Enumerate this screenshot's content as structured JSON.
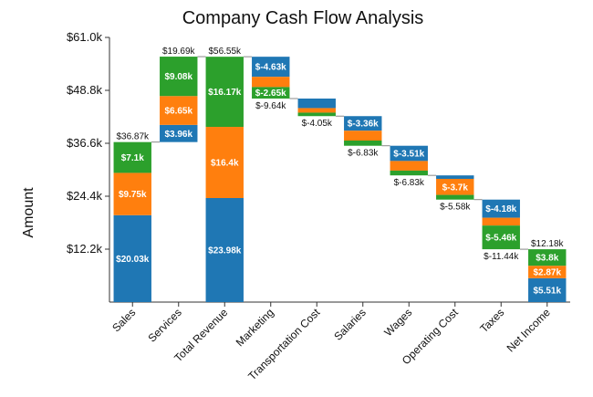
{
  "chart_data": {
    "type": "bar",
    "subtype": "stacked-waterfall",
    "title": "Company Cash Flow Analysis",
    "ylabel": "Amount",
    "xlabel": "",
    "ylim": [
      0,
      61000
    ],
    "yticks": [
      12200,
      24400,
      36600,
      48800,
      61000
    ],
    "ytick_labels": [
      "$12.2k",
      "$24.4k",
      "$36.6k",
      "$48.8k",
      "$61.0k"
    ],
    "colors": [
      "#1f77b4",
      "#ff7f0e",
      "#2ca02c"
    ],
    "legend": "none",
    "grid": false,
    "categories": [
      {
        "name": "Sales",
        "kind": "total",
        "segments": [
          {
            "value": 20030,
            "label": "$20.03k"
          },
          {
            "value": 9750,
            "label": "$9.75k"
          },
          {
            "value": 7100,
            "label": "$7.1k"
          }
        ],
        "total_label": "$36.87k"
      },
      {
        "name": "Services",
        "kind": "increase",
        "segments": [
          {
            "value": 3960,
            "label": "$3.96k"
          },
          {
            "value": 6650,
            "label": "$6.65k"
          },
          {
            "value": 9080,
            "label": "$9.08k"
          }
        ],
        "total_label": "$19.69k"
      },
      {
        "name": "Total Revenue",
        "kind": "total",
        "segments": [
          {
            "value": 23980,
            "label": "$23.98k"
          },
          {
            "value": 16400,
            "label": "$16.4k"
          },
          {
            "value": 16170,
            "label": "$16.17k"
          }
        ],
        "total_label": "$56.55k"
      },
      {
        "name": "Marketing",
        "kind": "decrease",
        "segments": [
          {
            "value": -4630,
            "label": "$-4.63k"
          },
          {
            "value": -2360,
            "label": ""
          },
          {
            "value": -2650,
            "label": "$-2.65k"
          }
        ],
        "total_label": "$-9.64k"
      },
      {
        "name": "Transportation Cost",
        "kind": "decrease",
        "segments": [
          {
            "value": -2200,
            "label": ""
          },
          {
            "value": -1050,
            "label": ""
          },
          {
            "value": -800,
            "label": ""
          }
        ],
        "total_label": "$-4.05k"
      },
      {
        "name": "Salaries",
        "kind": "decrease",
        "segments": [
          {
            "value": -3360,
            "label": "$-3.36k"
          },
          {
            "value": -2270,
            "label": ""
          },
          {
            "value": -1200,
            "label": ""
          }
        ],
        "total_label": "$-6.83k"
      },
      {
        "name": "Wages",
        "kind": "decrease",
        "segments": [
          {
            "value": -3510,
            "label": "$-3.51k"
          },
          {
            "value": -2220,
            "label": ""
          },
          {
            "value": -1100,
            "label": ""
          }
        ],
        "total_label": "$-6.83k"
      },
      {
        "name": "Operating Cost",
        "kind": "decrease",
        "segments": [
          {
            "value": -800,
            "label": ""
          },
          {
            "value": -3700,
            "label": "$-3.7k"
          },
          {
            "value": -1080,
            "label": ""
          }
        ],
        "total_label": "$-5.58k"
      },
      {
        "name": "Taxes",
        "kind": "decrease",
        "segments": [
          {
            "value": -4180,
            "label": "$-4.18k"
          },
          {
            "value": -1800,
            "label": ""
          },
          {
            "value": -5460,
            "label": "$-5.46k"
          }
        ],
        "total_label": "$-11.44k"
      },
      {
        "name": "Net Income",
        "kind": "total",
        "segments": [
          {
            "value": 5510,
            "label": "$5.51k"
          },
          {
            "value": 2870,
            "label": "$2.87k"
          },
          {
            "value": 3800,
            "label": "$3.8k"
          }
        ],
        "total_label": "$12.18k"
      }
    ]
  }
}
